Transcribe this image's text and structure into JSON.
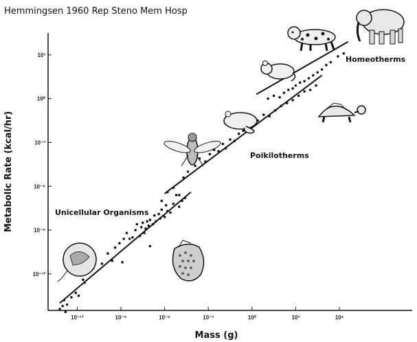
{
  "citation": "Hemmingsen 1960 Rep Steno Mem Hosp",
  "chart_data": {
    "type": "scatter",
    "xlabel": "Mass (g)",
    "ylabel": "Metabolic Rate (kcal/hr)",
    "x_scale": "log",
    "y_scale": "log",
    "xlim_log10": [
      -14,
      11
    ],
    "ylim_log10": [
      -14.5,
      4.5
    ],
    "x_ticks": [
      {
        "exp": -12,
        "label": "10⁻¹²"
      },
      {
        "exp": -9,
        "label": "10⁻⁹"
      },
      {
        "exp": -6,
        "label": "10⁻⁶"
      },
      {
        "exp": -3,
        "label": "10⁻³"
      },
      {
        "exp": 0,
        "label": "10⁰"
      },
      {
        "exp": 3,
        "label": "10³"
      },
      {
        "exp": 6,
        "label": "10⁶"
      }
    ],
    "y_ticks": [
      {
        "exp": 3,
        "label": "10³"
      },
      {
        "exp": 0,
        "label": "10⁰"
      },
      {
        "exp": -3,
        "label": "10⁻³"
      },
      {
        "exp": -6,
        "label": "10⁻⁶"
      },
      {
        "exp": -9,
        "label": "10⁻⁹"
      },
      {
        "exp": -12,
        "label": "10⁻¹²"
      }
    ],
    "annotations": [
      "Unicellular Organisms",
      "Poikilotherms",
      "Homeotherms"
    ],
    "series": [
      {
        "points_log10": [
          [
            -13.2,
            -14.4
          ],
          [
            -13.0,
            -14.2
          ],
          [
            -12.8,
            -14.6
          ],
          [
            -12.9,
            -13.8
          ],
          [
            -12.4,
            -13.6
          ],
          [
            -12.1,
            -13.3
          ],
          [
            -12.7,
            -14.1
          ],
          [
            -11.9,
            -13.5
          ],
          [
            -11.5,
            -12.6
          ],
          [
            -11.6,
            -12.4
          ],
          [
            -10.9,
            -11.6
          ],
          [
            -10.3,
            -11.3
          ],
          [
            -9.9,
            -10.6
          ],
          [
            -9.4,
            -10.2
          ],
          [
            -9.1,
            -9.9
          ],
          [
            -8.8,
            -9.6
          ],
          [
            -8.6,
            -9.2
          ],
          [
            -8.4,
            -9.6
          ],
          [
            -8.2,
            -9.5
          ],
          [
            -8.0,
            -9.0
          ],
          [
            -7.9,
            -8.6
          ],
          [
            -7.7,
            -9.4
          ],
          [
            -7.6,
            -8.8
          ],
          [
            -7.5,
            -8.5
          ],
          [
            -7.4,
            -9.2
          ],
          [
            -7.3,
            -8.9
          ],
          [
            -7.2,
            -8.4
          ],
          [
            -7.1,
            -8.7
          ],
          [
            -7.0,
            -8.3
          ],
          [
            -6.8,
            -8.6
          ],
          [
            -6.7,
            -8.0
          ],
          [
            -6.6,
            -8.4
          ],
          [
            -6.4,
            -7.9
          ],
          [
            -6.3,
            -8.2
          ],
          [
            -6.2,
            -7.6
          ],
          [
            -6.0,
            -8.1
          ],
          [
            -5.9,
            -7.3
          ],
          [
            -5.8,
            -7.7
          ],
          [
            -5.6,
            -7.8
          ],
          [
            -5.4,
            -7.2
          ],
          [
            -5.2,
            -6.6
          ],
          [
            -5.0,
            -7.4
          ],
          [
            -4.8,
            -7.0
          ],
          [
            -4.6,
            -6.8
          ],
          [
            -7.0,
            -10.1
          ],
          [
            -9.6,
            -11.1
          ],
          [
            -8.9,
            -11.2
          ]
        ]
      },
      {
        "points_log10": [
          [
            -6.2,
            -7.0
          ],
          [
            -5.8,
            -6.4
          ],
          [
            -5.4,
            -6.1
          ],
          [
            -5.0,
            -6.6
          ],
          [
            -4.7,
            -5.4
          ],
          [
            -4.4,
            -5.0
          ],
          [
            -3.9,
            -4.6
          ],
          [
            -3.6,
            -4.1
          ],
          [
            -3.2,
            -4.3
          ],
          [
            -2.9,
            -3.8
          ],
          [
            -2.6,
            -3.5
          ],
          [
            -2.3,
            -3.6
          ],
          [
            -2.0,
            -3.1
          ],
          [
            -1.8,
            -3.4
          ],
          [
            -1.5,
            -2.8
          ],
          [
            -1.2,
            -2.9
          ],
          [
            -0.9,
            -2.4
          ],
          [
            -0.6,
            -2.2
          ],
          [
            -0.3,
            -2.0
          ],
          [
            0.1,
            -1.6
          ],
          [
            0.4,
            -1.5
          ],
          [
            0.8,
            -1.1
          ],
          [
            1.2,
            -1.2
          ],
          [
            1.6,
            -0.8
          ],
          [
            2.0,
            -0.5
          ],
          [
            2.4,
            -0.3
          ],
          [
            2.8,
            -0.1
          ],
          [
            3.2,
            0.2
          ],
          [
            3.6,
            0.5
          ],
          [
            4.0,
            0.6
          ],
          [
            4.4,
            0.9
          ]
        ]
      },
      {
        "points_log10": [
          [
            1.1,
            0.0
          ],
          [
            1.5,
            0.2
          ],
          [
            1.9,
            0.1
          ],
          [
            2.2,
            0.4
          ],
          [
            2.5,
            0.6
          ],
          [
            2.8,
            0.7
          ],
          [
            3.0,
            0.9
          ],
          [
            3.3,
            1.1
          ],
          [
            3.6,
            1.2
          ],
          [
            3.9,
            1.4
          ],
          [
            4.2,
            1.6
          ],
          [
            4.5,
            1.8
          ],
          [
            4.8,
            2.0
          ],
          [
            5.1,
            2.3
          ],
          [
            5.4,
            2.5
          ],
          [
            5.9,
            2.9
          ],
          [
            6.3,
            3.1
          ]
        ]
      }
    ],
    "fit_lines_log10": [
      [
        [
          -13.2,
          -14.0
        ],
        [
          -4.2,
          -6.4
        ]
      ],
      [
        [
          -6.0,
          -6.5
        ],
        [
          4.8,
          1.6
        ]
      ],
      [
        [
          0.3,
          0.3
        ],
        [
          6.6,
          3.9
        ]
      ]
    ],
    "grid": false
  }
}
